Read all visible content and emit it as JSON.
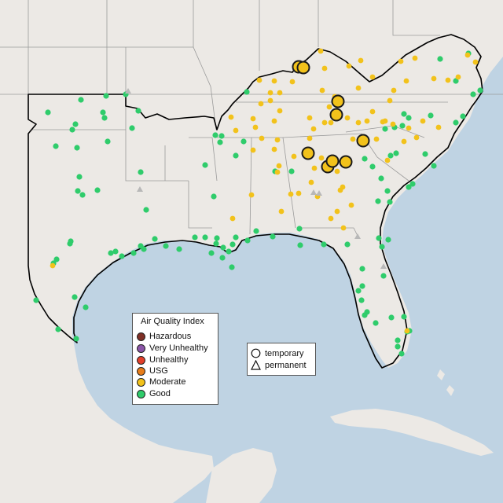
{
  "map": {
    "region": "Southeastern United States",
    "colors": {
      "ocean": "#bfd3e3",
      "land": "#ece9e5",
      "state_border": "#9a9a9a",
      "region_outline": "#000000"
    }
  },
  "legend": {
    "title": "Air Quality Index",
    "items": [
      {
        "label": "Hazardous",
        "color": "#7e2f26"
      },
      {
        "label": "Very Unhealthy",
        "color": "#8b55a8"
      },
      {
        "label": "Unhealthy",
        "color": "#e23f2a"
      },
      {
        "label": "USG",
        "color": "#e87d1a"
      },
      {
        "label": "Moderate",
        "color": "#f2c21b"
      },
      {
        "label": "Good",
        "color": "#2fcc6b"
      }
    ]
  },
  "shape_legend": {
    "items": [
      {
        "label": "temporary",
        "icon": "circle-outline-icon"
      },
      {
        "label": "permanent",
        "icon": "triangle-outline-icon"
      }
    ]
  }
}
